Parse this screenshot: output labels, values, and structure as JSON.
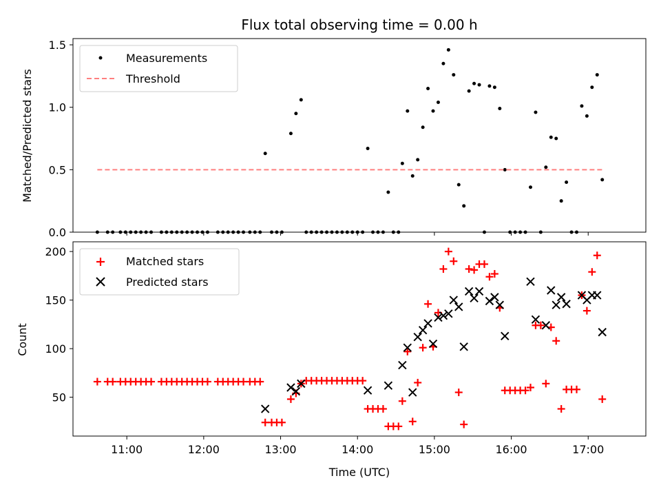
{
  "chart_data": [
    {
      "type": "scatter",
      "title": "Flux total observing time = 0.00 h",
      "xlabel": "",
      "ylabel": "Matched/Predicted stars",
      "xlim": [
        "10:18",
        "17:45"
      ],
      "ylim": [
        0,
        1.55
      ],
      "yticks": [
        0.0,
        0.5,
        1.0,
        1.5
      ],
      "ytick_labels": [
        "0.0",
        "0.5",
        "1.0",
        "1.5"
      ],
      "legend_position": "top-left",
      "series": [
        {
          "name": "Measurements",
          "marker": "dot",
          "color": "#000000",
          "points": [
            [
              "10:37",
              0
            ],
            [
              "10:45",
              0
            ],
            [
              "10:49",
              0
            ],
            [
              "10:55",
              0
            ],
            [
              "10:59",
              0
            ],
            [
              "11:03",
              0
            ],
            [
              "11:07",
              0
            ],
            [
              "11:11",
              0
            ],
            [
              "11:15",
              0
            ],
            [
              "11:19",
              0
            ],
            [
              "11:27",
              0
            ],
            [
              "11:31",
              0
            ],
            [
              "11:35",
              0
            ],
            [
              "11:39",
              0
            ],
            [
              "11:43",
              0
            ],
            [
              "11:47",
              0
            ],
            [
              "11:51",
              0
            ],
            [
              "11:55",
              0
            ],
            [
              "11:59",
              0
            ],
            [
              "12:03",
              0
            ],
            [
              "12:11",
              0
            ],
            [
              "12:15",
              0
            ],
            [
              "12:19",
              0
            ],
            [
              "12:23",
              0
            ],
            [
              "12:27",
              0
            ],
            [
              "12:31",
              0
            ],
            [
              "12:36",
              0
            ],
            [
              "12:40",
              0
            ],
            [
              "12:44",
              0
            ],
            [
              "12:48",
              0.63
            ],
            [
              "12:53",
              0
            ],
            [
              "12:57",
              0
            ],
            [
              "13:01",
              0
            ],
            [
              "13:08",
              0.79
            ],
            [
              "13:12",
              0.95
            ],
            [
              "13:16",
              1.06
            ],
            [
              "13:20",
              0
            ],
            [
              "13:24",
              0
            ],
            [
              "13:28",
              0
            ],
            [
              "13:32",
              0
            ],
            [
              "13:36",
              0
            ],
            [
              "13:40",
              0
            ],
            [
              "13:44",
              0
            ],
            [
              "13:48",
              0
            ],
            [
              "13:52",
              0
            ],
            [
              "13:56",
              0
            ],
            [
              "14:00",
              0
            ],
            [
              "14:04",
              0
            ],
            [
              "14:08",
              0.67
            ],
            [
              "14:12",
              0
            ],
            [
              "14:16",
              0
            ],
            [
              "14:20",
              0
            ],
            [
              "14:24",
              0.32
            ],
            [
              "14:28",
              0
            ],
            [
              "14:32",
              0
            ],
            [
              "14:35",
              0.55
            ],
            [
              "14:39",
              0.97
            ],
            [
              "14:43",
              0.45
            ],
            [
              "14:47",
              0.58
            ],
            [
              "14:51",
              0.84
            ],
            [
              "14:55",
              1.15
            ],
            [
              "14:59",
              0.97
            ],
            [
              "15:03",
              1.04
            ],
            [
              "15:07",
              1.35
            ],
            [
              "15:11",
              1.46
            ],
            [
              "15:15",
              1.26
            ],
            [
              "15:19",
              0.38
            ],
            [
              "15:23",
              0.21
            ],
            [
              "15:27",
              1.13
            ],
            [
              "15:31",
              1.19
            ],
            [
              "15:35",
              1.18
            ],
            [
              "15:39",
              0
            ],
            [
              "15:43",
              1.17
            ],
            [
              "15:47",
              1.16
            ],
            [
              "15:51",
              0.99
            ],
            [
              "15:55",
              0.5
            ],
            [
              "15:59",
              0
            ],
            [
              "16:03",
              0
            ],
            [
              "16:07",
              0
            ],
            [
              "16:11",
              0
            ],
            [
              "16:15",
              0.36
            ],
            [
              "16:19",
              0.96
            ],
            [
              "16:23",
              0
            ],
            [
              "16:27",
              0.52
            ],
            [
              "16:31",
              0.76
            ],
            [
              "16:35",
              0.75
            ],
            [
              "16:39",
              0.25
            ],
            [
              "16:43",
              0.4
            ],
            [
              "16:47",
              0
            ],
            [
              "16:51",
              0
            ],
            [
              "16:55",
              1.01
            ],
            [
              "16:59",
              0.93
            ],
            [
              "17:03",
              1.16
            ],
            [
              "17:07",
              1.26
            ],
            [
              "17:11",
              0.42
            ]
          ]
        },
        {
          "name": "Threshold",
          "style": "dashed",
          "color": "#ff7f7f",
          "points": [
            [
              "10:37",
              0.5
            ],
            [
              "17:11",
              0.5
            ]
          ]
        }
      ]
    },
    {
      "type": "scatter",
      "title": "",
      "xlabel": "Time (UTC)",
      "ylabel": "Count",
      "xlim": [
        "10:18",
        "17:45"
      ],
      "ylim": [
        10,
        210
      ],
      "yticks": [
        50,
        100,
        150,
        200
      ],
      "ytick_labels": [
        "50",
        "100",
        "150",
        "200"
      ],
      "xticks": [
        "11:00",
        "12:00",
        "13:00",
        "14:00",
        "15:00",
        "16:00",
        "17:00"
      ],
      "xtick_labels": [
        "11:00",
        "12:00",
        "13:00",
        "14:00",
        "15:00",
        "16:00",
        "17:00"
      ],
      "legend_position": "top-left",
      "series": [
        {
          "name": "Matched stars",
          "marker": "plus",
          "color": "#ff0000",
          "points": [
            [
              "10:37",
              66
            ],
            [
              "10:45",
              66
            ],
            [
              "10:49",
              66
            ],
            [
              "10:55",
              66
            ],
            [
              "10:59",
              66
            ],
            [
              "11:03",
              66
            ],
            [
              "11:07",
              66
            ],
            [
              "11:11",
              66
            ],
            [
              "11:15",
              66
            ],
            [
              "11:19",
              66
            ],
            [
              "11:27",
              66
            ],
            [
              "11:31",
              66
            ],
            [
              "11:35",
              66
            ],
            [
              "11:39",
              66
            ],
            [
              "11:43",
              66
            ],
            [
              "11:47",
              66
            ],
            [
              "11:51",
              66
            ],
            [
              "11:55",
              66
            ],
            [
              "11:59",
              66
            ],
            [
              "12:03",
              66
            ],
            [
              "12:11",
              66
            ],
            [
              "12:15",
              66
            ],
            [
              "12:19",
              66
            ],
            [
              "12:23",
              66
            ],
            [
              "12:27",
              66
            ],
            [
              "12:31",
              66
            ],
            [
              "12:36",
              66
            ],
            [
              "12:40",
              66
            ],
            [
              "12:44",
              66
            ],
            [
              "12:48",
              24
            ],
            [
              "12:53",
              24
            ],
            [
              "12:57",
              24
            ],
            [
              "13:01",
              24
            ],
            [
              "13:08",
              48
            ],
            [
              "13:12",
              54
            ],
            [
              "13:16",
              64
            ],
            [
              "13:20",
              67
            ],
            [
              "13:24",
              67
            ],
            [
              "13:28",
              67
            ],
            [
              "13:32",
              67
            ],
            [
              "13:36",
              67
            ],
            [
              "13:40",
              67
            ],
            [
              "13:44",
              67
            ],
            [
              "13:48",
              67
            ],
            [
              "13:52",
              67
            ],
            [
              "13:56",
              67
            ],
            [
              "14:00",
              67
            ],
            [
              "14:04",
              67
            ],
            [
              "14:08",
              38
            ],
            [
              "14:12",
              38
            ],
            [
              "14:16",
              38
            ],
            [
              "14:20",
              38
            ],
            [
              "14:24",
              20
            ],
            [
              "14:28",
              20
            ],
            [
              "14:32",
              20
            ],
            [
              "14:35",
              46
            ],
            [
              "14:39",
              97
            ],
            [
              "14:43",
              25
            ],
            [
              "14:47",
              65
            ],
            [
              "14:51",
              101
            ],
            [
              "14:55",
              146
            ],
            [
              "14:59",
              102
            ],
            [
              "15:03",
              137
            ],
            [
              "15:07",
              182
            ],
            [
              "15:11",
              200
            ],
            [
              "15:15",
              190
            ],
            [
              "15:19",
              55
            ],
            [
              "15:23",
              22
            ],
            [
              "15:27",
              182
            ],
            [
              "15:31",
              181
            ],
            [
              "15:35",
              187
            ],
            [
              "15:39",
              187
            ],
            [
              "15:43",
              174
            ],
            [
              "15:47",
              177
            ],
            [
              "15:51",
              142
            ],
            [
              "15:55",
              57
            ],
            [
              "15:59",
              57
            ],
            [
              "16:03",
              57
            ],
            [
              "16:07",
              57
            ],
            [
              "16:11",
              57
            ],
            [
              "16:15",
              60
            ],
            [
              "16:19",
              124
            ],
            [
              "16:23",
              124
            ],
            [
              "16:27",
              64
            ],
            [
              "16:31",
              122
            ],
            [
              "16:35",
              108
            ],
            [
              "16:39",
              38
            ],
            [
              "16:43",
              58
            ],
            [
              "16:47",
              58
            ],
            [
              "16:51",
              58
            ],
            [
              "16:55",
              155
            ],
            [
              "16:59",
              139
            ],
            [
              "17:03",
              179
            ],
            [
              "17:07",
              196
            ],
            [
              "17:11",
              48
            ]
          ]
        },
        {
          "name": "Predicted stars",
          "marker": "x",
          "color": "#000000",
          "points": [
            [
              "12:48",
              38
            ],
            [
              "13:08",
              60
            ],
            [
              "13:12",
              56
            ],
            [
              "13:16",
              64
            ],
            [
              "14:08",
              57
            ],
            [
              "14:24",
              62
            ],
            [
              "14:35",
              83
            ],
            [
              "14:39",
              101
            ],
            [
              "14:43",
              55
            ],
            [
              "14:47",
              112
            ],
            [
              "14:51",
              119
            ],
            [
              "14:55",
              126
            ],
            [
              "14:59",
              105
            ],
            [
              "15:03",
              132
            ],
            [
              "15:07",
              134
            ],
            [
              "15:11",
              136
            ],
            [
              "15:15",
              150
            ],
            [
              "15:19",
              143
            ],
            [
              "15:23",
              102
            ],
            [
              "15:27",
              159
            ],
            [
              "15:31",
              152
            ],
            [
              "15:35",
              159
            ],
            [
              "15:43",
              149
            ],
            [
              "15:47",
              153
            ],
            [
              "15:51",
              145
            ],
            [
              "15:55",
              113
            ],
            [
              "16:15",
              169
            ],
            [
              "16:19",
              130
            ],
            [
              "16:27",
              124
            ],
            [
              "16:31",
              160
            ],
            [
              "16:35",
              145
            ],
            [
              "16:39",
              153
            ],
            [
              "16:43",
              146
            ],
            [
              "16:55",
              155
            ],
            [
              "16:59",
              150
            ],
            [
              "17:03",
              155
            ],
            [
              "17:07",
              155
            ],
            [
              "17:11",
              117
            ]
          ]
        }
      ]
    }
  ]
}
